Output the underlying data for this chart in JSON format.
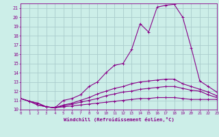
{
  "xlabel": "Windchill (Refroidissement éolien,°C)",
  "xlim": [
    0,
    23
  ],
  "ylim": [
    10,
    21.5
  ],
  "xticks": [
    0,
    1,
    2,
    3,
    4,
    5,
    6,
    7,
    8,
    9,
    10,
    11,
    12,
    13,
    14,
    15,
    16,
    17,
    18,
    19,
    20,
    21,
    22,
    23
  ],
  "yticks": [
    10,
    11,
    12,
    13,
    14,
    15,
    16,
    17,
    18,
    19,
    20,
    21
  ],
  "background_color": "#cceee8",
  "grid_color": "#aacccc",
  "line_color": "#880088",
  "lines": [
    {
      "x": [
        0,
        1,
        2,
        3,
        4,
        5,
        6,
        7,
        8,
        9,
        10,
        11,
        12,
        13,
        14,
        15,
        16,
        17,
        18,
        19,
        20,
        21,
        22,
        23
      ],
      "y": [
        11.2,
        10.9,
        10.7,
        10.3,
        10.2,
        11.0,
        11.2,
        11.6,
        12.5,
        13.0,
        14.0,
        14.8,
        15.0,
        16.5,
        19.3,
        18.4,
        21.1,
        21.3,
        21.4,
        20.0,
        16.7,
        13.1,
        12.5,
        11.9
      ]
    },
    {
      "x": [
        0,
        1,
        2,
        3,
        4,
        5,
        6,
        7,
        8,
        9,
        10,
        11,
        12,
        13,
        14,
        15,
        16,
        17,
        18,
        19,
        20,
        21,
        22,
        23
      ],
      "y": [
        11.2,
        10.9,
        10.7,
        10.3,
        10.2,
        10.5,
        10.7,
        11.0,
        11.3,
        11.7,
        12.0,
        12.3,
        12.5,
        12.8,
        13.0,
        13.1,
        13.2,
        13.3,
        13.3,
        12.8,
        12.5,
        12.2,
        11.9,
        11.5
      ]
    },
    {
      "x": [
        0,
        1,
        2,
        3,
        4,
        5,
        6,
        7,
        8,
        9,
        10,
        11,
        12,
        13,
        14,
        15,
        16,
        17,
        18,
        19,
        20,
        21,
        22,
        23
      ],
      "y": [
        11.2,
        10.9,
        10.5,
        10.3,
        10.2,
        10.4,
        10.6,
        10.8,
        11.0,
        11.2,
        11.5,
        11.7,
        11.9,
        12.0,
        12.2,
        12.3,
        12.4,
        12.5,
        12.5,
        12.3,
        12.1,
        12.0,
        11.6,
        11.3
      ]
    },
    {
      "x": [
        0,
        1,
        2,
        3,
        4,
        5,
        6,
        7,
        8,
        9,
        10,
        11,
        12,
        13,
        14,
        15,
        16,
        17,
        18,
        19,
        20,
        21,
        22,
        23
      ],
      "y": [
        11.2,
        10.9,
        10.5,
        10.3,
        10.2,
        10.3,
        10.4,
        10.5,
        10.6,
        10.7,
        10.8,
        10.9,
        11.0,
        11.1,
        11.2,
        11.2,
        11.3,
        11.3,
        11.3,
        11.2,
        11.1,
        11.1,
        11.1,
        11.1
      ]
    }
  ]
}
